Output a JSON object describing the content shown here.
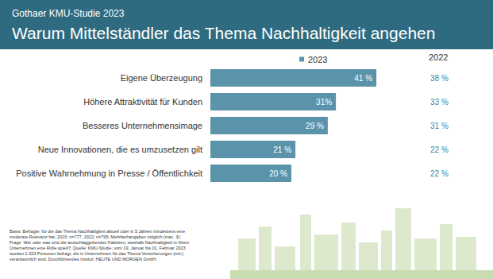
{
  "chart_data": {
    "type": "bar",
    "orientation": "horizontal",
    "subtitle": "Gothaer KMU-Studie 2023",
    "title": "Warum Mittelständler das Thema Nachhaltigkeit angehen",
    "categories": [
      "Eigene Überzeugung",
      "Höhere Attraktivität für Kunden",
      "Besseres Unternehmensimage",
      "Neue Innovationen, die es umzusetzen gilt",
      "Positive Wahrnehmung in Presse / Öffentlichkeit"
    ],
    "series": [
      {
        "name": "2023",
        "color": "#5b93ab",
        "values": [
          41,
          31,
          29,
          21,
          20
        ],
        "value_labels": [
          "41 %",
          "31%",
          "29 %",
          "21 %",
          "20 %"
        ]
      },
      {
        "name": "2022",
        "type": "text",
        "color": "#3f86a3",
        "values": [
          38,
          33,
          31,
          22,
          22
        ],
        "value_labels": [
          "38 %",
          "33 %",
          "31 %",
          "22 %",
          "22 %"
        ]
      }
    ],
    "xlim": [
      0,
      50
    ],
    "xticks": [
      0,
      50
    ],
    "tick_labels": "y",
    "grid": false,
    "data_labels": true,
    "legend": "top",
    "annotations": [
      "Basis: Befragte, für die das Thema Nachhaltigkeit aktuell oder in 5 Jahren mindestens eine moderate Relevanz hat; 2023: n=777, 2022: n=795; Mehrfachangaben möglich (max. 3); Frage: Wer oder was sind die ausschlaggebenden Faktoren, weshalb Nachhaltigkeit in Ihrem Unternehmen eine Rolle spielt?; Quelle: KMU-Studie; vom 19. Januar bis 01. Februar 2023 wurden 1.023 Personen befragt, die in Unternehmen für das Thema Versicherungen (mit-) verantwortlich sind. Durchführendes Institut: HEUTE UND MORGEN GmbH."
    ]
  }
}
